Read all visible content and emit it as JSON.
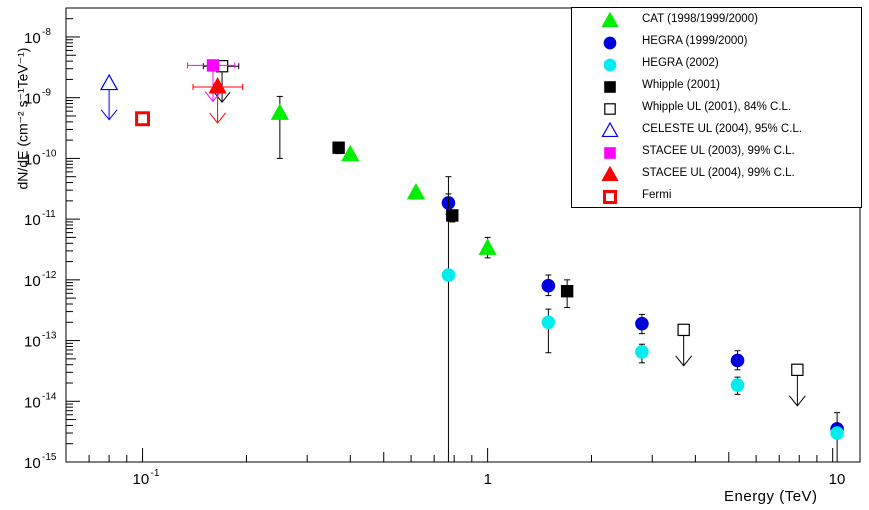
{
  "chart_data": {
    "type": "scatter",
    "xlabel": "Energy  (TeV)",
    "ylabel": "dN/dE (cm⁻² s⁻¹TeV⁻¹)",
    "x_scale": "log",
    "y_scale": "log",
    "xlim": [
      0.06,
      12
    ],
    "ylim": [
      1e-15,
      3e-08
    ],
    "x_ticks": [
      {
        "value": 0.1,
        "base": "10",
        "exp": "-1"
      },
      {
        "value": 1,
        "base": "1",
        "exp": ""
      },
      {
        "value": 10,
        "base": "10",
        "exp": ""
      }
    ],
    "y_ticks": [
      {
        "value": 1e-08,
        "base": "10",
        "exp": "-8"
      },
      {
        "value": 1e-09,
        "base": "10",
        "exp": "-9"
      },
      {
        "value": 1e-10,
        "base": "10",
        "exp": "-10"
      },
      {
        "value": 1e-11,
        "base": "10",
        "exp": "-11"
      },
      {
        "value": 1e-12,
        "base": "10",
        "exp": "-12"
      },
      {
        "value": 1e-13,
        "base": "10",
        "exp": "-13"
      },
      {
        "value": 1e-14,
        "base": "10",
        "exp": "-14"
      },
      {
        "value": 1e-15,
        "base": "10",
        "exp": "-15"
      }
    ],
    "series": [
      {
        "name": "CAT (1998/1999/2000)",
        "marker": "triangle",
        "color": "#00ee00",
        "filled": true,
        "points": [
          {
            "x": 0.25,
            "y": 5.5e-10,
            "ylo": 1e-10,
            "yhi": 1.05e-09
          },
          {
            "x": 0.4,
            "y": 1.15e-10,
            "ylo": 1e-10,
            "yhi": 1.35e-10
          },
          {
            "x": 0.62,
            "y": 2.7e-11,
            "ylo": 2.3e-11,
            "yhi": 3.2e-11
          },
          {
            "x": 1.0,
            "y": 3.3e-12,
            "ylo": 2.3e-12,
            "yhi": 5e-12
          }
        ]
      },
      {
        "name": "HEGRA (1999/2000)",
        "marker": "circle",
        "color": "#0000dd",
        "filled": true,
        "points": [
          {
            "x": 0.77,
            "y": 1.85e-11,
            "ylo": 1.2e-11,
            "yhi": 2.6e-11
          },
          {
            "x": 1.5,
            "y": 8e-13,
            "ylo": 5.5e-13,
            "yhi": 1.2e-12
          },
          {
            "x": 2.8,
            "y": 1.9e-13,
            "ylo": 1.3e-13,
            "yhi": 2.7e-13
          },
          {
            "x": 5.3,
            "y": 4.7e-14,
            "ylo": 3.3e-14,
            "yhi": 6.8e-14
          },
          {
            "x": 10.3,
            "y": 3.5e-15,
            "ylo": 3e-15,
            "yhi": 4e-15
          }
        ]
      },
      {
        "name": "HEGRA (2002)",
        "marker": "circle",
        "color": "#00eeee",
        "filled": true,
        "points": [
          {
            "x": 0.77,
            "y": 1.2e-12,
            "ylo": 1e-15,
            "yhi": 5e-11
          },
          {
            "x": 1.5,
            "y": 2e-13,
            "ylo": 6.3e-14,
            "yhi": 3.3e-13
          },
          {
            "x": 2.8,
            "y": 6.5e-14,
            "ylo": 4.3e-14,
            "yhi": 8.7e-14
          },
          {
            "x": 5.3,
            "y": 1.85e-14,
            "ylo": 1.3e-14,
            "yhi": 2.5e-14
          },
          {
            "x": 10.3,
            "y": 3e-15,
            "ylo": 1e-15,
            "yhi": 6.5e-15
          }
        ]
      },
      {
        "name": "Whipple (2001)",
        "marker": "square",
        "color": "#000000",
        "filled": true,
        "points": [
          {
            "x": 0.37,
            "y": 1.5e-10,
            "ylo": 1.2e-10,
            "yhi": 1.8e-10
          },
          {
            "x": 0.79,
            "y": 1.15e-11,
            "ylo": 9e-12,
            "yhi": 1.4e-11
          },
          {
            "x": 1.7,
            "y": 6.5e-13,
            "ylo": 3.5e-13,
            "yhi": 1e-12
          }
        ]
      },
      {
        "name": "Whipple UL (2001), 84% C.L.",
        "marker": "square",
        "color": "#000000",
        "filled": false,
        "upper_limit": true,
        "points": [
          {
            "x": 0.17,
            "y": 3.3e-09,
            "xlo": 0.15,
            "xhi": 0.19
          },
          {
            "x": 3.7,
            "y": 1.5e-13
          },
          {
            "x": 7.9,
            "y": 3.3e-14
          }
        ]
      },
      {
        "name": "CELESTE UL (2004), 95% C.L.",
        "marker": "triangle",
        "color": "#0000ff",
        "filled": false,
        "upper_limit": true,
        "points": [
          {
            "x": 0.08,
            "y": 1.7e-09
          }
        ]
      },
      {
        "name": "STACEE UL (2003), 99% C.L.",
        "marker": "square",
        "color": "#ff00ff",
        "filled": true,
        "upper_limit": true,
        "points": [
          {
            "x": 0.16,
            "y": 3.4e-09,
            "xlo": 0.135,
            "xhi": 0.185
          }
        ]
      },
      {
        "name": "STACEE UL (2004), 99% C.L.",
        "marker": "triangle",
        "color": "#ff0000",
        "filled": true,
        "upper_limit": true,
        "points": [
          {
            "x": 0.165,
            "y": 1.5e-09,
            "xlo": 0.14,
            "xhi": 0.195
          }
        ]
      },
      {
        "name": "Fermi",
        "marker": "square",
        "color": "#ff0000",
        "filled": false,
        "thick": true,
        "points": [
          {
            "x": 0.1,
            "y": 4.5e-10
          }
        ]
      }
    ]
  }
}
